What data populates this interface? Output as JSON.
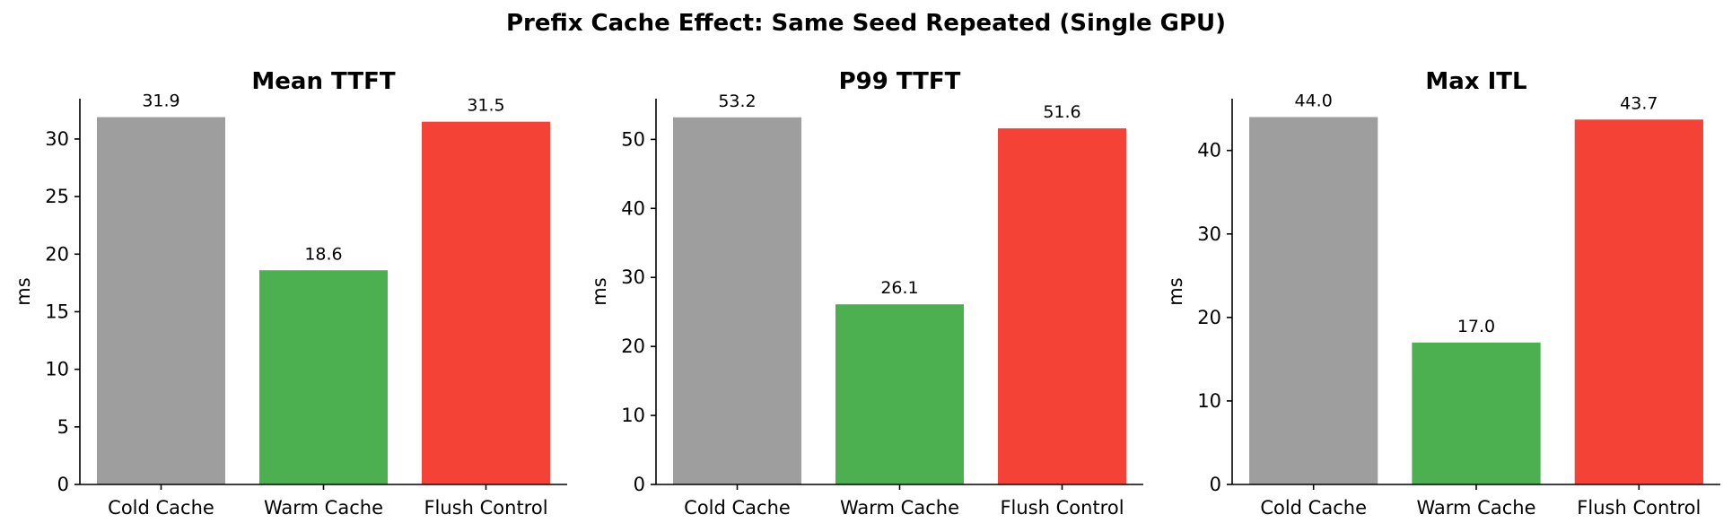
{
  "figure": {
    "title": "Prefix Cache Effect: Same Seed Repeated (Single GPU)"
  },
  "colors": {
    "Cold Cache": "#9e9e9e",
    "Warm Cache": "#4caf50",
    "Flush Control": "#f44336"
  },
  "chart_data": [
    {
      "type": "bar",
      "title": "Mean TTFT",
      "xlabel": "",
      "ylabel": "ms",
      "categories": [
        "Cold Cache",
        "Warm Cache",
        "Flush Control"
      ],
      "values": [
        31.9,
        18.6,
        31.5
      ],
      "value_labels": [
        "31.9",
        "18.6",
        "31.5"
      ],
      "yticks": [
        0,
        5,
        10,
        15,
        20,
        25,
        30
      ],
      "ylim": [
        0,
        33.5
      ],
      "grid": false,
      "legend": "none"
    },
    {
      "type": "bar",
      "title": "P99 TTFT",
      "xlabel": "",
      "ylabel": "ms",
      "categories": [
        "Cold Cache",
        "Warm Cache",
        "Flush Control"
      ],
      "values": [
        53.2,
        26.1,
        51.6
      ],
      "value_labels": [
        "53.2",
        "26.1",
        "51.6"
      ],
      "yticks": [
        0,
        10,
        20,
        30,
        40,
        50
      ],
      "ylim": [
        0,
        55.9
      ],
      "grid": false,
      "legend": "none"
    },
    {
      "type": "bar",
      "title": "Max ITL",
      "xlabel": "",
      "ylabel": "ms",
      "categories": [
        "Cold Cache",
        "Warm Cache",
        "Flush Control"
      ],
      "values": [
        44.0,
        17.0,
        43.7
      ],
      "value_labels": [
        "44.0",
        "17.0",
        "43.7"
      ],
      "yticks": [
        0,
        10,
        20,
        30,
        40
      ],
      "ylim": [
        0,
        46.2
      ],
      "grid": false,
      "legend": "none"
    }
  ]
}
